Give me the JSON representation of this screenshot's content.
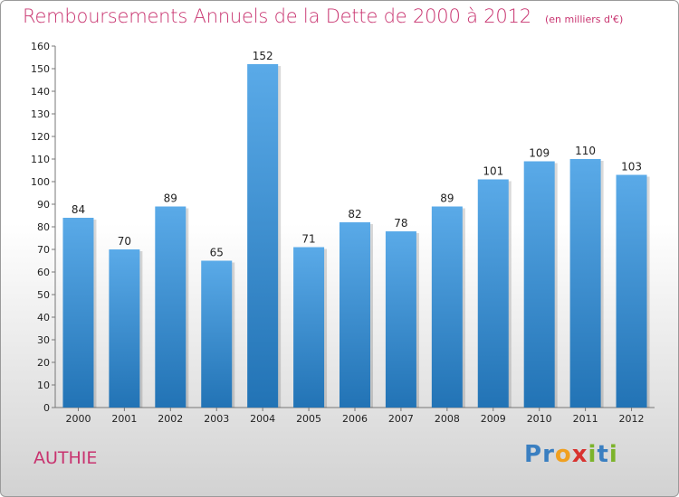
{
  "title": "Remboursements Annuels de la Dette de 2000 à 2012",
  "subtitle": "(en milliers d'€)",
  "city": "AUTHIE",
  "logo": {
    "text": "Proxiti",
    "letters": [
      {
        "char": "P",
        "color": "#3a7fc1"
      },
      {
        "char": "r",
        "color": "#3a7fc1"
      },
      {
        "char": "o",
        "color": "#f0a020"
      },
      {
        "char": "x",
        "color": "#d8322f"
      },
      {
        "char": "i",
        "color": "#7cb32b"
      },
      {
        "char": "t",
        "color": "#3a7fc1"
      },
      {
        "char": "i",
        "color": "#7cb32b"
      }
    ]
  },
  "colors": {
    "bar_top": "#5aaae8",
    "bar_bottom": "#2273b5",
    "accent": "#c8336f"
  },
  "chart_data": {
    "type": "bar",
    "categories": [
      "2000",
      "2001",
      "2002",
      "2003",
      "2004",
      "2005",
      "2006",
      "2007",
      "2008",
      "2009",
      "2010",
      "2011",
      "2012"
    ],
    "values": [
      84,
      70,
      89,
      65,
      152,
      71,
      82,
      78,
      89,
      101,
      109,
      110,
      103
    ],
    "ylim": [
      0,
      160
    ],
    "ytick_step": 10,
    "grid": false
  }
}
